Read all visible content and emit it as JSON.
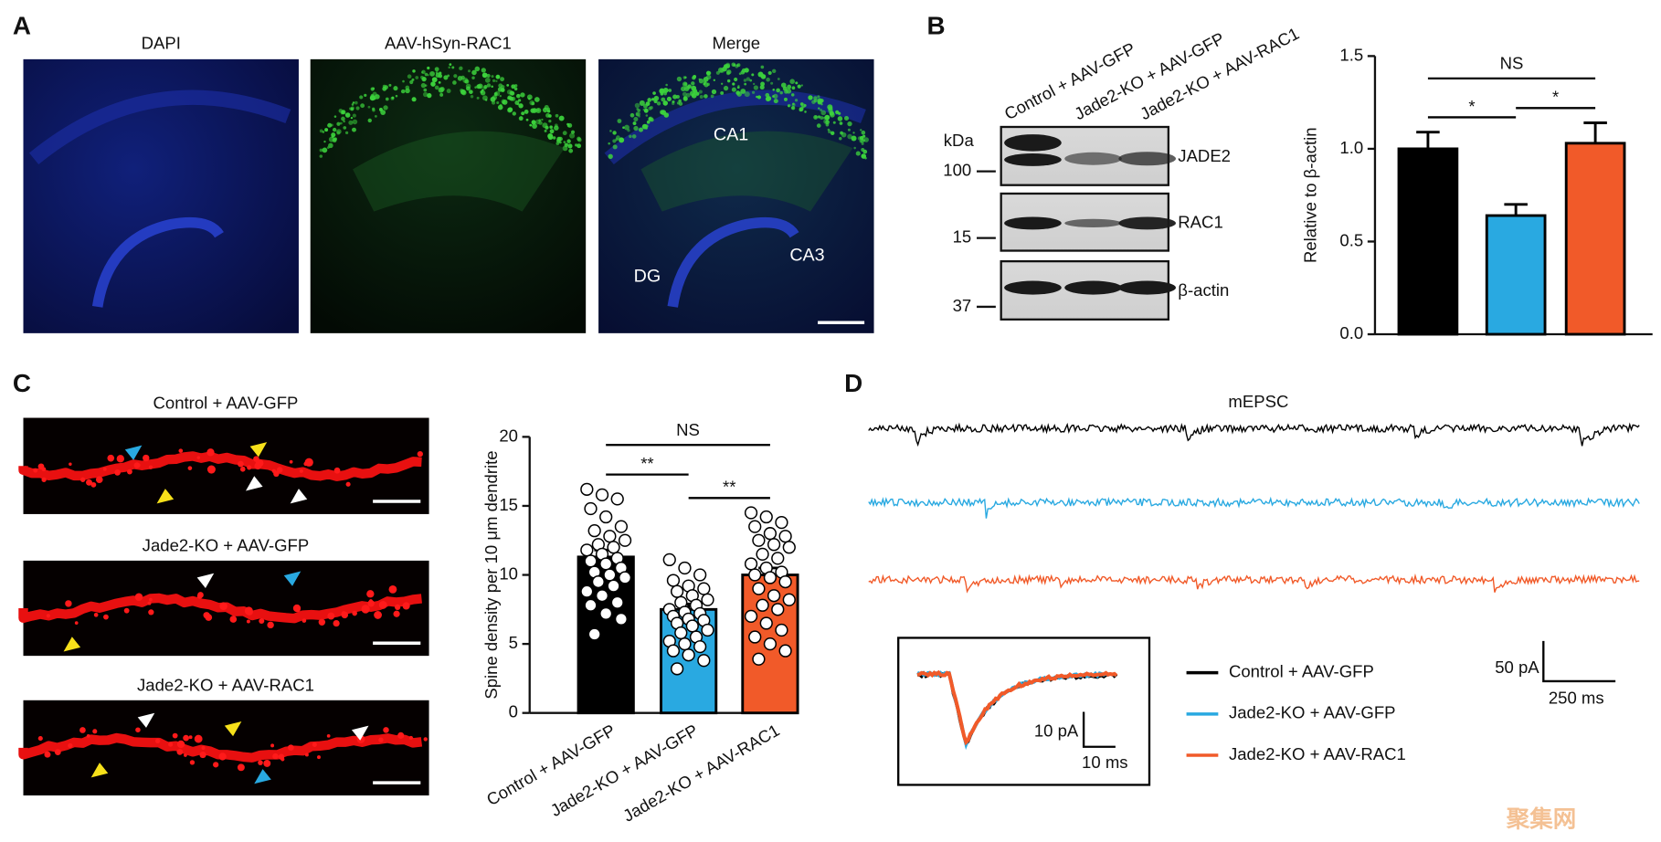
{
  "panel_labels": [
    "A",
    "B",
    "C",
    "D"
  ],
  "panel_a": {
    "image_titles": [
      "DAPI",
      "AAV-hSyn-RAC1",
      "Merge"
    ],
    "region_labels": [
      "CA1",
      "DG",
      "CA3"
    ]
  },
  "panel_b_blot": {
    "lanes": [
      "Control + AAV-GFP",
      "Jade2-KO + AAV-GFP",
      "Jade2-KO + AAV-RAC1"
    ],
    "unit": "kDa",
    "markers": [
      "100",
      "15",
      "37"
    ],
    "bands": [
      "JADE2",
      "RAC1",
      "β-actin"
    ]
  },
  "panel_c_images": {
    "titles": [
      "Control + AAV-GFP",
      "Jade2-KO + AAV-GFP",
      "Jade2-KO + AAV-RAC1"
    ]
  },
  "panel_d": {
    "title": "mEPSC",
    "scale_bars": [
      "50 pA",
      "250 ms"
    ],
    "inset_scale_bars": [
      "10 pA",
      "10 ms"
    ],
    "legend": [
      {
        "name": "Control + AAV-GFP",
        "color": "#000000"
      },
      {
        "name": "Jade2-KO + AAV-GFP",
        "color": "#29a9e1"
      },
      {
        "name": "Jade2-KO + AAV-RAC1",
        "color": "#f15a29"
      }
    ]
  },
  "watermark": "聚集网",
  "chart_data": [
    {
      "type": "bar",
      "ylabel": "Relative to β-actin",
      "categories": [
        null,
        null,
        null
      ],
      "values": [
        1.0,
        0.64,
        1.03
      ],
      "errors": [
        0.09,
        0.06,
        0.11
      ],
      "colors": [
        "#000000",
        "#29a9e1",
        "#f15a29"
      ],
      "ylim": [
        0,
        1.5
      ],
      "yticks": [
        {
          "value": 0,
          "label": "0.0"
        },
        0.5,
        {
          "value": 1,
          "label": "1.0"
        },
        1.5
      ],
      "comparisons": [
        {
          "groups": [
            0,
            2
          ],
          "label": "NS"
        },
        {
          "groups": [
            0,
            1
          ],
          "label": "*"
        },
        {
          "groups": [
            1,
            2
          ],
          "label": "*"
        }
      ]
    },
    {
      "type": "bar",
      "ylabel": "Spine density per 10 μm dendrite",
      "categories": [
        "Control + AAV-GFP",
        "Jade2-KO + AAV-GFP",
        "Jade2-KO + AAV-RAC1"
      ],
      "values": [
        11.3,
        7.5,
        10.0
      ],
      "errors": [
        0.5,
        0.4,
        0.5
      ],
      "colors": [
        "#000000",
        "#29a9e1",
        "#f15a29"
      ],
      "points": [
        [
          16.2,
          15.8,
          15.5,
          14.8,
          14.2,
          13.5,
          13.2,
          12.8,
          12.5,
          12.2,
          12.0,
          11.8,
          11.5,
          11.2,
          11.0,
          10.8,
          10.5,
          10.2,
          10.0,
          9.8,
          9.5,
          9.2,
          8.8,
          8.5,
          8.0,
          7.8,
          7.2,
          6.8,
          5.7
        ],
        [
          11.1,
          10.5,
          10.0,
          9.6,
          9.2,
          9.0,
          8.8,
          8.5,
          8.2,
          8.0,
          7.8,
          7.5,
          7.3,
          7.2,
          7.0,
          6.8,
          6.7,
          6.5,
          6.3,
          6.0,
          5.8,
          5.5,
          5.2,
          5.0,
          4.8,
          4.5,
          4.2,
          3.8,
          3.2
        ],
        [
          14.5,
          14.2,
          13.8,
          13.5,
          13.0,
          12.8,
          12.5,
          12.2,
          12.0,
          11.5,
          11.2,
          10.8,
          10.5,
          10.2,
          10.0,
          9.8,
          9.5,
          9.0,
          8.5,
          8.2,
          7.8,
          7.5,
          7.0,
          6.5,
          6.0,
          5.5,
          5.0,
          4.5,
          3.9
        ]
      ],
      "ylim": [
        0,
        20
      ],
      "yticks": [
        0,
        5,
        10,
        15,
        20
      ],
      "comparisons": [
        {
          "groups": [
            0,
            2
          ],
          "label": "NS"
        },
        {
          "groups": [
            0,
            1
          ],
          "label": "**"
        },
        {
          "groups": [
            1,
            2
          ],
          "label": "**"
        }
      ]
    }
  ]
}
